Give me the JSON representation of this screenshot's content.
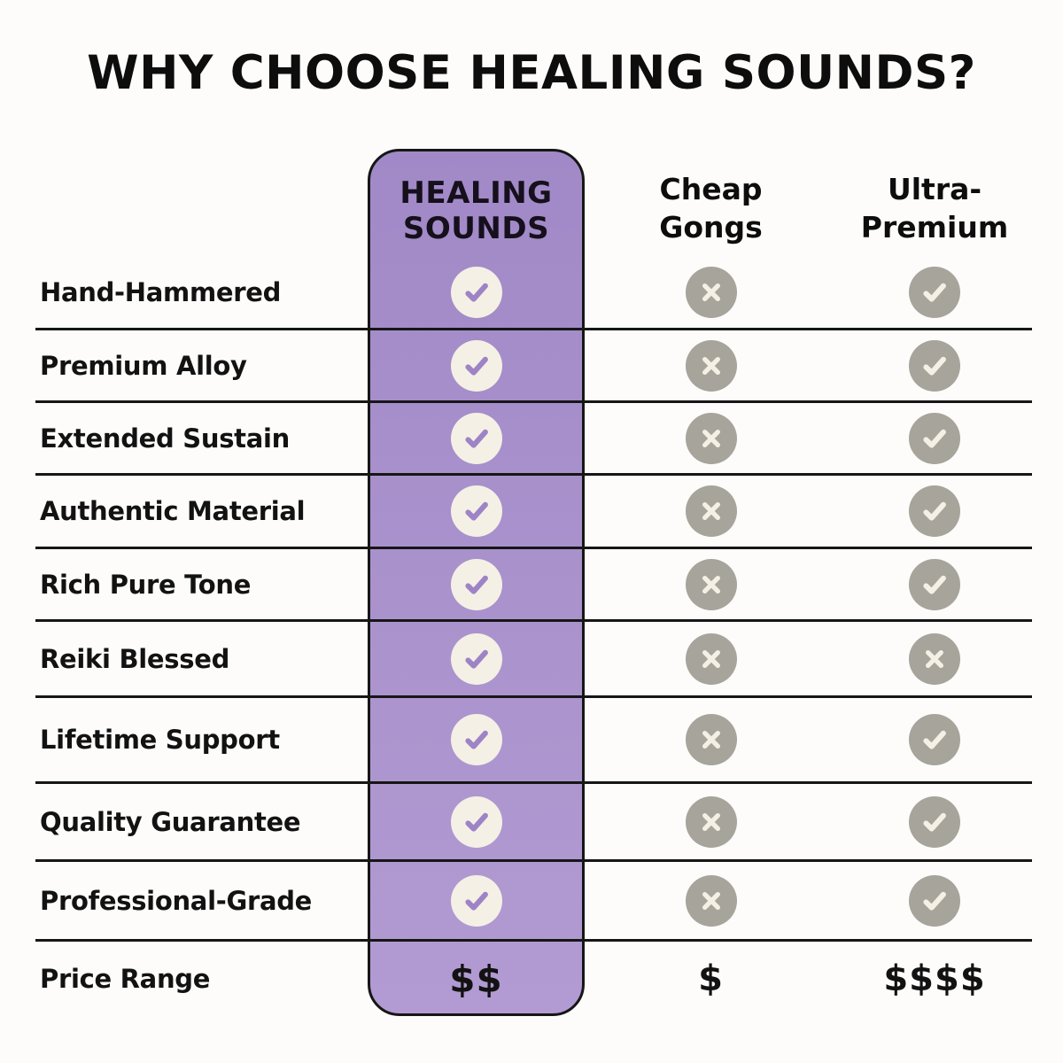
{
  "title": "WHY CHOOSE HEALING SOUNDS?",
  "headers": {
    "healing": {
      "line1": "HEALING",
      "line2": "SOUNDS"
    },
    "cheap": {
      "line1": "Cheap",
      "line2": "Gongs"
    },
    "ultra": {
      "line1": "Ultra-",
      "line2": "Premium"
    }
  },
  "rows": [
    {
      "label": "Hand-Hammered",
      "type": "icons",
      "cells": {
        "healing": "check",
        "cheap": "x",
        "ultra": "check"
      }
    },
    {
      "label": "Premium Alloy",
      "type": "icons",
      "cells": {
        "healing": "check",
        "cheap": "x",
        "ultra": "check"
      }
    },
    {
      "label": "Extended Sustain",
      "type": "icons",
      "cells": {
        "healing": "check",
        "cheap": "x",
        "ultra": "check"
      }
    },
    {
      "label": "Authentic Material",
      "type": "icons",
      "cells": {
        "healing": "check",
        "cheap": "x",
        "ultra": "check"
      }
    },
    {
      "label": "Rich Pure Tone",
      "type": "icons",
      "cells": {
        "healing": "check",
        "cheap": "x",
        "ultra": "check"
      }
    },
    {
      "label": "Reiki Blessed",
      "type": "icons",
      "cells": {
        "healing": "check",
        "cheap": "x",
        "ultra": "x"
      }
    },
    {
      "label": "Lifetime Support",
      "type": "icons",
      "cells": {
        "healing": "check",
        "cheap": "x",
        "ultra": "check"
      }
    },
    {
      "label": "Quality Guarantee",
      "type": "icons",
      "cells": {
        "healing": "check",
        "cheap": "x",
        "ultra": "check"
      }
    },
    {
      "label": "Professional-Grade",
      "type": "icons",
      "cells": {
        "healing": "check",
        "cheap": "x",
        "ultra": "check"
      }
    },
    {
      "label": "Price Range",
      "type": "price",
      "cells": {
        "healing": "$$",
        "cheap": "$",
        "ultra": "$$$$"
      }
    }
  ],
  "icons": {
    "check": "check-icon",
    "x": "x-icon"
  },
  "colors": {
    "bg": "#fdfcfb",
    "ink": "#0d0d0d",
    "line": "#161616",
    "featured_top": "#a189c7",
    "featured_bottom": "#b29bd2",
    "featured_glyph": "#9e83c6",
    "cream": "#f4f0e5",
    "neutral": "#a6a49b"
  }
}
